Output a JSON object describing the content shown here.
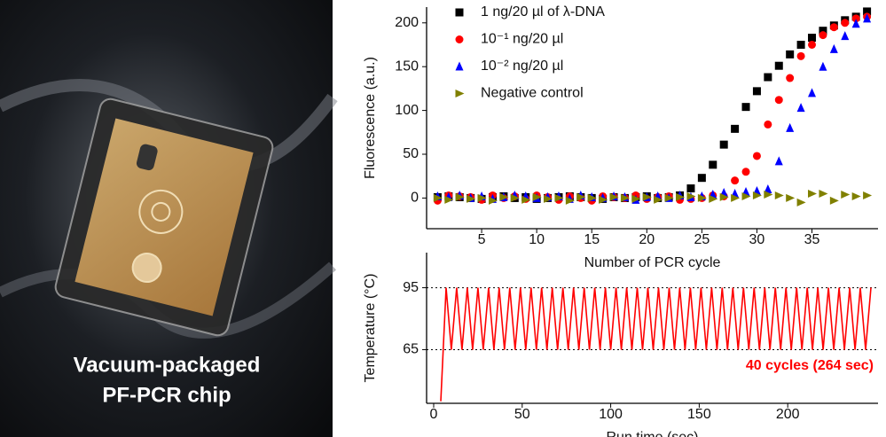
{
  "photo": {
    "caption": [
      "Vacuum-packaged",
      "PF-PCR chip"
    ]
  },
  "chart_data": [
    {
      "type": "scatter",
      "xlabel": "Number of PCR cycle",
      "ylabel": "Fluorescence (a.u.)",
      "x": [
        1,
        2,
        3,
        4,
        5,
        6,
        7,
        8,
        9,
        10,
        11,
        12,
        13,
        14,
        15,
        16,
        17,
        18,
        19,
        20,
        21,
        22,
        23,
        24,
        25,
        26,
        27,
        28,
        29,
        30,
        31,
        32,
        33,
        34,
        35,
        36,
        37,
        38,
        39,
        40
      ],
      "xlim": [
        0,
        41
      ],
      "xticks": [
        5,
        10,
        15,
        20,
        25,
        30,
        35
      ],
      "ylim": [
        -35,
        218
      ],
      "yticks": [
        0,
        50,
        100,
        150,
        200
      ],
      "legend": "upper left",
      "grid": false,
      "series": [
        {
          "name": "1 ng/20 µl of λ-DNA",
          "color": "#000000",
          "marker": "square",
          "values": [
            1,
            2,
            1,
            0,
            -1,
            1,
            2,
            0,
            1,
            -1,
            0,
            1,
            2,
            1,
            0,
            -1,
            1,
            0,
            1,
            2,
            0,
            1,
            3,
            11,
            23,
            38,
            61,
            79,
            104,
            122,
            138,
            151,
            164,
            175,
            183,
            191,
            197,
            203,
            207,
            213
          ]
        },
        {
          "name": "10⁻¹ ng/20 µl",
          "color": "#ff0000",
          "marker": "circle",
          "values": [
            -3,
            3,
            2,
            1,
            -2,
            3,
            0,
            2,
            -1,
            3,
            1,
            -2,
            2,
            0,
            -3,
            2,
            1,
            0,
            3,
            -1,
            1,
            2,
            -2,
            -1,
            0,
            3,
            2,
            20,
            30,
            48,
            84,
            112,
            137,
            162,
            175,
            186,
            195,
            200,
            205,
            207
          ]
        },
        {
          "name": "10⁻² ng/20 µl",
          "color": "#0000ff",
          "marker": "triangle",
          "values": [
            2,
            1,
            3,
            0,
            2,
            -1,
            1,
            3,
            2,
            0,
            1,
            2,
            -1,
            3,
            1,
            0,
            2,
            1,
            -2,
            1,
            2,
            0,
            3,
            1,
            2,
            4,
            6,
            5,
            7,
            8,
            10,
            42,
            80,
            103,
            120,
            150,
            170,
            185,
            199,
            205
          ]
        },
        {
          "name": "Negative control",
          "color": "#808000",
          "marker": "triangle-right",
          "values": [
            0,
            -2,
            1,
            -1,
            0,
            -3,
            1,
            0,
            -2,
            1,
            -1,
            0,
            -3,
            1,
            0,
            -2,
            1,
            0,
            -1,
            1,
            -2,
            0,
            1,
            2,
            0,
            -1,
            1,
            0,
            2,
            3,
            4,
            3,
            0,
            -5,
            5,
            5,
            -3,
            4,
            2,
            3
          ]
        }
      ]
    },
    {
      "type": "line",
      "xlabel": "Run time (sec)",
      "ylabel": "Temperature (°C)",
      "color": "#ff0000",
      "annotation": "40 cycles (264 sec)",
      "grid": "dotted",
      "xlim": [
        -4,
        251
      ],
      "xticks": [
        0,
        50,
        100,
        150,
        200
      ],
      "ylim": [
        39,
        112
      ],
      "yticks": [
        65,
        95
      ],
      "x": [
        4,
        7,
        10,
        13,
        16,
        19,
        22,
        25,
        28,
        31,
        34,
        37,
        40,
        43,
        46,
        49,
        52,
        55,
        58,
        61,
        64,
        67,
        70,
        73,
        76,
        79,
        82,
        85,
        88,
        91,
        94,
        97,
        100,
        103,
        106,
        109,
        112,
        115,
        118,
        121,
        124,
        127,
        130,
        133,
        136,
        139,
        142,
        145,
        148,
        151,
        154,
        157,
        160,
        163,
        166,
        169,
        172,
        175,
        178,
        181,
        184,
        187,
        190,
        193,
        196,
        199,
        202,
        205,
        208,
        211,
        214,
        217,
        220,
        223,
        226,
        229,
        232,
        235,
        238,
        241,
        244,
        247
      ],
      "values": [
        40,
        95,
        65,
        95,
        65,
        95,
        65,
        95,
        65,
        95,
        65,
        95,
        65,
        95,
        65,
        95,
        65,
        95,
        65,
        95,
        65,
        95,
        65,
        95,
        65,
        95,
        65,
        95,
        65,
        95,
        65,
        95,
        65,
        95,
        65,
        95,
        65,
        95,
        65,
        95,
        65,
        95,
        65,
        95,
        65,
        95,
        65,
        95,
        65,
        95,
        65,
        95,
        65,
        95,
        65,
        95,
        65,
        95,
        65,
        95,
        65,
        95,
        65,
        95,
        65,
        95,
        65,
        95,
        65,
        95,
        65,
        95,
        65,
        95,
        65,
        95,
        65,
        95,
        65,
        95,
        65,
        95
      ]
    }
  ]
}
